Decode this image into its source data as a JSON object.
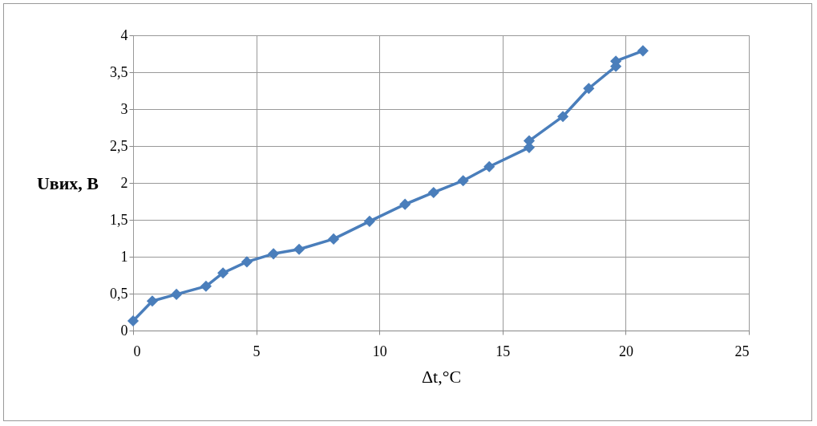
{
  "chart_data": {
    "type": "line",
    "xlabel": "Δt,°C",
    "ylabel": "Uвих, В",
    "x": [
      0,
      0.78,
      1.76,
      2.96,
      3.65,
      4.62,
      5.7,
      6.74,
      8.14,
      9.6,
      11.04,
      12.2,
      13.4,
      14.46,
      16.08,
      16.08,
      17.45,
      18.5,
      19.6,
      19.6,
      20.7
    ],
    "series": [
      {
        "color": "#4a7ebb",
        "values": [
          0.13,
          0.4,
          0.49,
          0.6,
          0.78,
          0.93,
          1.04,
          1.1,
          1.24,
          1.48,
          1.71,
          1.87,
          2.03,
          2.22,
          2.48,
          2.57,
          2.9,
          3.28,
          3.58,
          3.65,
          3.79
        ]
      }
    ],
    "xlim": [
      0,
      25
    ],
    "xticks": [
      0,
      5,
      10,
      15,
      20,
      25
    ],
    "ylim": [
      0,
      4
    ],
    "yticks": [
      0,
      {
        "value": 0.5,
        "label": "0,5"
      },
      1,
      {
        "value": 1.5,
        "label": "1,5"
      },
      2,
      {
        "value": 2.5,
        "label": "2,5"
      },
      3,
      {
        "value": 3.5,
        "label": "3,5"
      },
      4
    ],
    "grid": true,
    "marker": "diamond",
    "line_style": "solid"
  }
}
